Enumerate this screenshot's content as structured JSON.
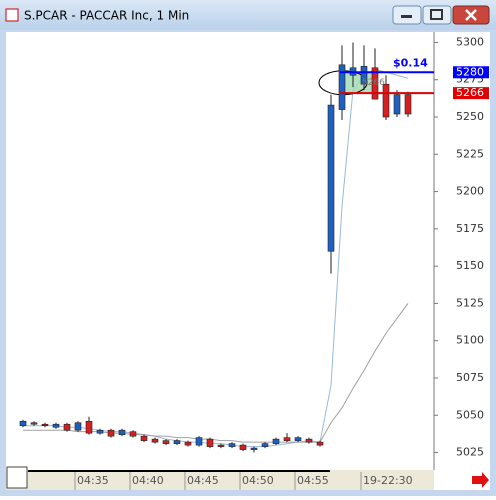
{
  "window": {
    "title": "S.PCAR - PACCAR Inc, 1 Min"
  },
  "chart_data": {
    "type": "candlestick",
    "categories": [
      null,
      null,
      null,
      null,
      null,
      "04:35",
      null,
      null,
      null,
      null,
      "04:40",
      null,
      null,
      null,
      null,
      "04:45",
      null,
      null,
      null,
      null,
      "04:50",
      null,
      null,
      null,
      null,
      "04:55",
      null,
      null,
      null,
      null,
      null,
      "19-22:30",
      null,
      null,
      null,
      null
    ],
    "open": [
      5043,
      5045,
      5044,
      5042,
      5044,
      5040,
      5046,
      5038,
      5040,
      5037,
      5039,
      5036,
      5034,
      5033,
      5031,
      5032,
      5030,
      5034,
      5030,
      5029,
      5030,
      5027,
      5029,
      5031,
      5035,
      5033,
      5034,
      5032,
      5160,
      5255,
      5278,
      5272,
      5283,
      5272,
      5252,
      5265
    ],
    "close": [
      5046,
      5044,
      5043,
      5044,
      5040,
      5045,
      5038,
      5040,
      5036,
      5040,
      5036,
      5033,
      5032,
      5031,
      5033,
      5030,
      5035,
      5029,
      5029,
      5031,
      5027,
      5028,
      5031,
      5034,
      5033,
      5035,
      5032,
      5030,
      5258,
      5285,
      5283,
      5284,
      5262,
      5250,
      5265,
      5252
    ],
    "high": [
      5047,
      5046,
      5045,
      5045,
      5045,
      5046,
      5049,
      5041,
      5041,
      5041,
      5040,
      5037,
      5035,
      5034,
      5034,
      5033,
      5036,
      5035,
      5031,
      5032,
      5031,
      5029,
      5032,
      5035,
      5038,
      5036,
      5035,
      5033,
      5265,
      5298,
      5300,
      5298,
      5296,
      5278,
      5268,
      5267
    ],
    "low": [
      5042,
      5043,
      5042,
      5041,
      5039,
      5039,
      5037,
      5037,
      5035,
      5036,
      5035,
      5032,
      5031,
      5030,
      5030,
      5029,
      5029,
      5028,
      5028,
      5028,
      5026,
      5025,
      5028,
      5030,
      5032,
      5032,
      5031,
      5029,
      5145,
      5248,
      5270,
      5268,
      5262,
      5248,
      5250,
      5250
    ],
    "up_color": "#1f5fbf",
    "down_color": "#d42020",
    "overlays": [
      {
        "color": "#9ab8d8",
        "values": [
          5043,
          5043,
          5043,
          5043,
          5042,
          5042,
          5041,
          5040,
          5039,
          5039,
          5038,
          5037,
          5036,
          5034,
          5033,
          5032,
          5032,
          5031,
          5031,
          5030,
          5029,
          5029,
          5029,
          5030,
          5031,
          5032,
          5033,
          5032,
          5070,
          5190,
          5268,
          5278,
          5282,
          5280,
          5278,
          5276
        ]
      },
      {
        "color": "#a0a0a0",
        "values": [
          5040,
          5040,
          5040,
          5040,
          5040,
          5039,
          5039,
          5039,
          5038,
          5038,
          5037,
          5037,
          5036,
          5036,
          5035,
          5035,
          5034,
          5034,
          5033,
          5033,
          5032,
          5032,
          5032,
          5032,
          5032,
          5032,
          5032,
          5032,
          5045,
          5055,
          5068,
          5080,
          5093,
          5105,
          5115,
          5125
        ]
      }
    ],
    "price_lines": [
      {
        "value": 5280,
        "color": "#0000ff"
      },
      {
        "value": 5266,
        "color": "#e00000"
      }
    ],
    "annotation": "$0.14",
    "ylim": [
      5018,
      5307
    ],
    "yticks": [
      5025,
      5050,
      5075,
      5100,
      5125,
      5150,
      5175,
      5200,
      5225,
      5250,
      5275,
      5300
    ]
  }
}
